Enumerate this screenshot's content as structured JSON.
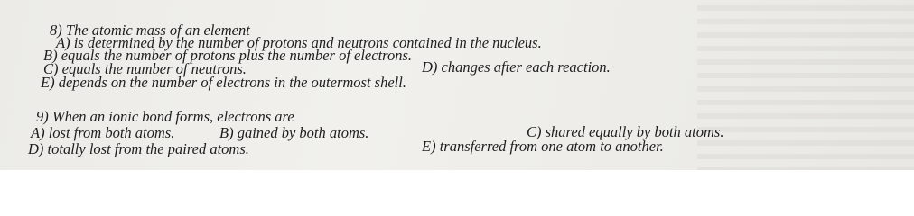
{
  "questions": [
    {
      "stem": "8) The atomic mass of an element",
      "options": [
        "A) is determined by the number of protons and neutrons contained in the nucleus.",
        "B) equals the number of protons plus the number of electrons.",
        "C) equals the number of neutrons.",
        "D) changes after each reaction.",
        "E) depends on the number of electrons in the outermost shell."
      ]
    },
    {
      "stem": "9) When an ionic bond forms, electrons are",
      "options": [
        "A) lost from both atoms.",
        "B) gained by both atoms.",
        "C) shared equally by both atoms.",
        "D) totally lost from the paired atoms.",
        "E) transferred from one atom to another."
      ]
    }
  ]
}
